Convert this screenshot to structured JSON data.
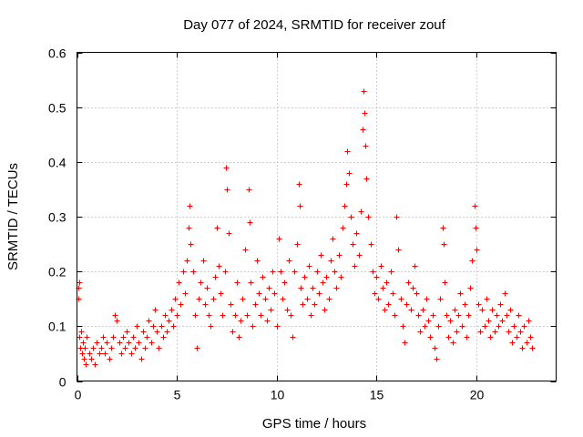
{
  "chart_data": {
    "type": "scatter",
    "title": "Day 077 of 2024, SRMTID for receiver zouf",
    "xlabel": "GPS time / hours",
    "ylabel": "SRMTID / TECUs",
    "xlim": [
      0,
      24
    ],
    "ylim": [
      0,
      0.6
    ],
    "xticks": [
      0,
      5,
      10,
      15,
      20
    ],
    "yticks": [
      0,
      0.1,
      0.2,
      0.3,
      0.4,
      0.5,
      0.6
    ],
    "xtick_labels": [
      "0",
      "5",
      "10",
      "15",
      "20"
    ],
    "ytick_labels": [
      "0",
      "0.1",
      "0.2",
      "0.3",
      "0.4",
      "0.5",
      "0.6"
    ],
    "grid": true,
    "marker": "+",
    "color": "#ff0000",
    "series": [
      {
        "name": "SRMTID",
        "points": [
          [
            0.05,
            0.17
          ],
          [
            0.08,
            0.15
          ],
          [
            0.1,
            0.18
          ],
          [
            0.12,
            0.08
          ],
          [
            0.15,
            0.06
          ],
          [
            0.2,
            0.09
          ],
          [
            0.25,
            0.05
          ],
          [
            0.3,
            0.07
          ],
          [
            0.35,
            0.04
          ],
          [
            0.4,
            0.06
          ],
          [
            0.45,
            0.03
          ],
          [
            0.5,
            0.08
          ],
          [
            0.6,
            0.05
          ],
          [
            0.7,
            0.04
          ],
          [
            0.8,
            0.06
          ],
          [
            0.9,
            0.03
          ],
          [
            1.0,
            0.07
          ],
          [
            1.1,
            0.05
          ],
          [
            1.2,
            0.06
          ],
          [
            1.3,
            0.08
          ],
          [
            1.4,
            0.05
          ],
          [
            1.5,
            0.07
          ],
          [
            1.6,
            0.04
          ],
          [
            1.7,
            0.06
          ],
          [
            1.8,
            0.08
          ],
          [
            1.9,
            0.12
          ],
          [
            2.0,
            0.11
          ],
          [
            2.1,
            0.07
          ],
          [
            2.2,
            0.05
          ],
          [
            2.3,
            0.08
          ],
          [
            2.4,
            0.06
          ],
          [
            2.5,
            0.09
          ],
          [
            2.6,
            0.07
          ],
          [
            2.7,
            0.05
          ],
          [
            2.8,
            0.08
          ],
          [
            2.9,
            0.06
          ],
          [
            3.0,
            0.1
          ],
          [
            3.1,
            0.07
          ],
          [
            3.2,
            0.04
          ],
          [
            3.3,
            0.09
          ],
          [
            3.4,
            0.06
          ],
          [
            3.5,
            0.08
          ],
          [
            3.6,
            0.11
          ],
          [
            3.7,
            0.07
          ],
          [
            3.8,
            0.1
          ],
          [
            3.9,
            0.13
          ],
          [
            4.0,
            0.09
          ],
          [
            4.1,
            0.06
          ],
          [
            4.2,
            0.1
          ],
          [
            4.3,
            0.08
          ],
          [
            4.4,
            0.12
          ],
          [
            4.5,
            0.09
          ],
          [
            4.6,
            0.11
          ],
          [
            4.7,
            0.13
          ],
          [
            4.8,
            0.1
          ],
          [
            4.9,
            0.15
          ],
          [
            5.0,
            0.12
          ],
          [
            5.1,
            0.18
          ],
          [
            5.2,
            0.14
          ],
          [
            5.3,
            0.2
          ],
          [
            5.4,
            0.16
          ],
          [
            5.5,
            0.22
          ],
          [
            5.6,
            0.28
          ],
          [
            5.65,
            0.32
          ],
          [
            5.7,
            0.25
          ],
          [
            5.8,
            0.2
          ],
          [
            5.9,
            0.12
          ],
          [
            6.0,
            0.06
          ],
          [
            6.1,
            0.15
          ],
          [
            6.2,
            0.18
          ],
          [
            6.3,
            0.22
          ],
          [
            6.4,
            0.14
          ],
          [
            6.5,
            0.17
          ],
          [
            6.6,
            0.12
          ],
          [
            6.7,
            0.1
          ],
          [
            6.8,
            0.15
          ],
          [
            6.9,
            0.19
          ],
          [
            7.0,
            0.28
          ],
          [
            7.1,
            0.21
          ],
          [
            7.2,
            0.16
          ],
          [
            7.3,
            0.12
          ],
          [
            7.4,
            0.2
          ],
          [
            7.45,
            0.39
          ],
          [
            7.5,
            0.35
          ],
          [
            7.6,
            0.27
          ],
          [
            7.7,
            0.14
          ],
          [
            7.8,
            0.09
          ],
          [
            7.9,
            0.12
          ],
          [
            8.0,
            0.18
          ],
          [
            8.1,
            0.08
          ],
          [
            8.2,
            0.11
          ],
          [
            8.3,
            0.15
          ],
          [
            8.4,
            0.24
          ],
          [
            8.5,
            0.12
          ],
          [
            8.6,
            0.35
          ],
          [
            8.65,
            0.29
          ],
          [
            8.7,
            0.18
          ],
          [
            8.8,
            0.1
          ],
          [
            8.9,
            0.14
          ],
          [
            9.0,
            0.22
          ],
          [
            9.1,
            0.16
          ],
          [
            9.2,
            0.12
          ],
          [
            9.3,
            0.19
          ],
          [
            9.4,
            0.15
          ],
          [
            9.5,
            0.11
          ],
          [
            9.6,
            0.17
          ],
          [
            9.7,
            0.13
          ],
          [
            9.8,
            0.2
          ],
          [
            9.9,
            0.16
          ],
          [
            10.0,
            0.1
          ],
          [
            10.1,
            0.26
          ],
          [
            10.2,
            0.2
          ],
          [
            10.3,
            0.15
          ],
          [
            10.4,
            0.18
          ],
          [
            10.5,
            0.13
          ],
          [
            10.6,
            0.22
          ],
          [
            10.7,
            0.12
          ],
          [
            10.8,
            0.08
          ],
          [
            10.9,
            0.2
          ],
          [
            11.0,
            0.25
          ],
          [
            11.1,
            0.36
          ],
          [
            11.15,
            0.32
          ],
          [
            11.2,
            0.17
          ],
          [
            11.3,
            0.14
          ],
          [
            11.4,
            0.19
          ],
          [
            11.5,
            0.15
          ],
          [
            11.6,
            0.21
          ],
          [
            11.7,
            0.12
          ],
          [
            11.8,
            0.17
          ],
          [
            11.9,
            0.14
          ],
          [
            12.0,
            0.2
          ],
          [
            12.1,
            0.16
          ],
          [
            12.2,
            0.23
          ],
          [
            12.3,
            0.18
          ],
          [
            12.4,
            0.13
          ],
          [
            12.5,
            0.19
          ],
          [
            12.6,
            0.15
          ],
          [
            12.7,
            0.22
          ],
          [
            12.8,
            0.26
          ],
          [
            12.9,
            0.2
          ],
          [
            13.0,
            0.17
          ],
          [
            13.1,
            0.23
          ],
          [
            13.2,
            0.19
          ],
          [
            13.3,
            0.28
          ],
          [
            13.4,
            0.32
          ],
          [
            13.5,
            0.36
          ],
          [
            13.55,
            0.42
          ],
          [
            13.6,
            0.38
          ],
          [
            13.7,
            0.3
          ],
          [
            13.8,
            0.25
          ],
          [
            13.9,
            0.21
          ],
          [
            14.0,
            0.27
          ],
          [
            14.1,
            0.23
          ],
          [
            14.2,
            0.31
          ],
          [
            14.3,
            0.46
          ],
          [
            14.35,
            0.53
          ],
          [
            14.4,
            0.49
          ],
          [
            14.45,
            0.43
          ],
          [
            14.5,
            0.37
          ],
          [
            14.6,
            0.3
          ],
          [
            14.7,
            0.25
          ],
          [
            14.8,
            0.2
          ],
          [
            14.9,
            0.16
          ],
          [
            15.0,
            0.19
          ],
          [
            15.1,
            0.15
          ],
          [
            15.2,
            0.21
          ],
          [
            15.3,
            0.17
          ],
          [
            15.4,
            0.13
          ],
          [
            15.5,
            0.18
          ],
          [
            15.6,
            0.14
          ],
          [
            15.7,
            0.2
          ],
          [
            15.8,
            0.16
          ],
          [
            15.9,
            0.12
          ],
          [
            16.0,
            0.3
          ],
          [
            16.1,
            0.24
          ],
          [
            16.2,
            0.15
          ],
          [
            16.3,
            0.1
          ],
          [
            16.4,
            0.07
          ],
          [
            16.5,
            0.14
          ],
          [
            16.6,
            0.18
          ],
          [
            16.7,
            0.13
          ],
          [
            16.8,
            0.17
          ],
          [
            16.9,
            0.21
          ],
          [
            17.0,
            0.16
          ],
          [
            17.1,
            0.12
          ],
          [
            17.2,
            0.09
          ],
          [
            17.3,
            0.13
          ],
          [
            17.4,
            0.1
          ],
          [
            17.5,
            0.15
          ],
          [
            17.6,
            0.11
          ],
          [
            17.7,
            0.08
          ],
          [
            17.8,
            0.12
          ],
          [
            17.9,
            0.06
          ],
          [
            18.0,
            0.04
          ],
          [
            18.1,
            0.1
          ],
          [
            18.2,
            0.15
          ],
          [
            18.3,
            0.28
          ],
          [
            18.35,
            0.25
          ],
          [
            18.4,
            0.18
          ],
          [
            18.5,
            0.12
          ],
          [
            18.6,
            0.08
          ],
          [
            18.7,
            0.11
          ],
          [
            18.8,
            0.07
          ],
          [
            18.9,
            0.13
          ],
          [
            19.0,
            0.09
          ],
          [
            19.1,
            0.12
          ],
          [
            19.2,
            0.16
          ],
          [
            19.3,
            0.1
          ],
          [
            19.4,
            0.14
          ],
          [
            19.5,
            0.08
          ],
          [
            19.6,
            0.12
          ],
          [
            19.7,
            0.17
          ],
          [
            19.8,
            0.22
          ],
          [
            19.9,
            0.32
          ],
          [
            19.95,
            0.28
          ],
          [
            20.0,
            0.24
          ],
          [
            20.1,
            0.14
          ],
          [
            20.2,
            0.09
          ],
          [
            20.3,
            0.13
          ],
          [
            20.4,
            0.1
          ],
          [
            20.5,
            0.15
          ],
          [
            20.6,
            0.11
          ],
          [
            20.7,
            0.08
          ],
          [
            20.8,
            0.13
          ],
          [
            20.9,
            0.09
          ],
          [
            21.0,
            0.12
          ],
          [
            21.1,
            0.1
          ],
          [
            21.2,
            0.14
          ],
          [
            21.3,
            0.11
          ],
          [
            21.4,
            0.16
          ],
          [
            21.5,
            0.12
          ],
          [
            21.6,
            0.09
          ],
          [
            21.7,
            0.13
          ],
          [
            21.8,
            0.07
          ],
          [
            21.9,
            0.1
          ],
          [
            22.0,
            0.08
          ],
          [
            22.1,
            0.12
          ],
          [
            22.2,
            0.09
          ],
          [
            22.3,
            0.06
          ],
          [
            22.4,
            0.1
          ],
          [
            22.5,
            0.07
          ],
          [
            22.6,
            0.11
          ],
          [
            22.7,
            0.08
          ],
          [
            22.8,
            0.06
          ]
        ]
      }
    ]
  }
}
